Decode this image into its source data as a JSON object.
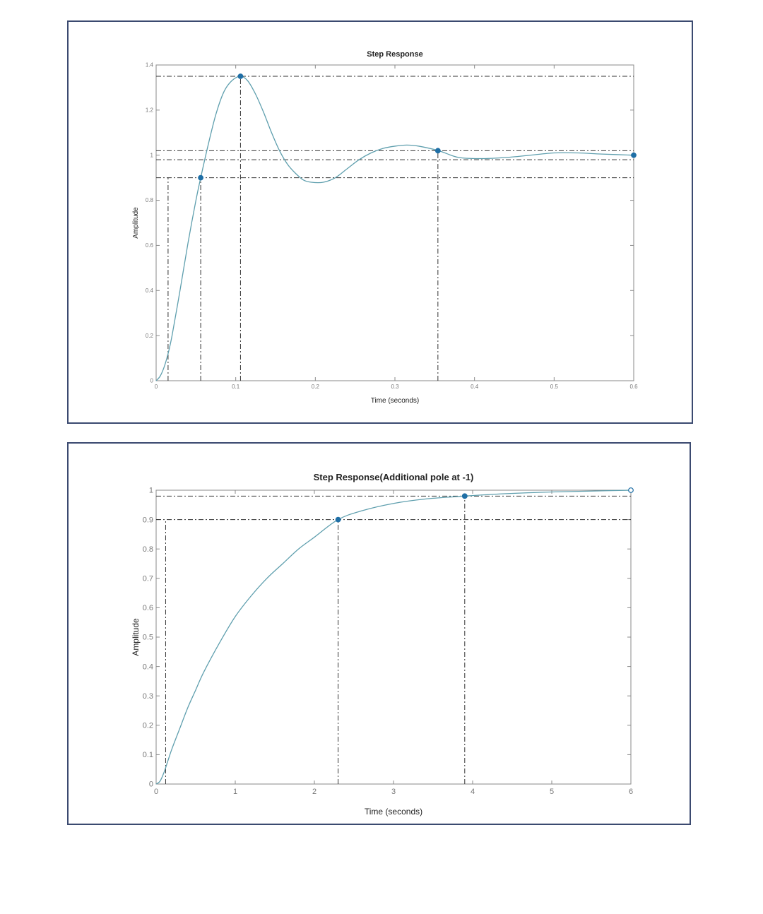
{
  "chart_data": [
    {
      "type": "line",
      "title": "Step Response",
      "xlabel": "Time (seconds)",
      "ylabel": "Amplitude",
      "xlim": [
        0,
        0.6
      ],
      "ylim": [
        0,
        1.4
      ],
      "xticks": [
        "0",
        "0.1",
        "0.2",
        "0.3",
        "0.4",
        "0.5",
        "0.6"
      ],
      "yticks": [
        "0",
        "0.2",
        "0.4",
        "0.6",
        "0.8",
        "1",
        "1.2",
        "1.4"
      ],
      "grid": false,
      "series": [
        {
          "x": [
            0,
            0.005,
            0.01,
            0.015,
            0.02,
            0.03,
            0.04,
            0.05,
            0.056,
            0.065,
            0.075,
            0.085,
            0.095,
            0.106,
            0.115,
            0.125,
            0.135,
            0.145,
            0.155,
            0.165,
            0.175,
            0.185,
            0.195,
            0.21,
            0.225,
            0.24,
            0.255,
            0.27,
            0.285,
            0.3,
            0.315,
            0.33,
            0.355,
            0.38,
            0.41,
            0.44,
            0.47,
            0.5,
            0.53,
            0.56,
            0.6
          ],
          "y": [
            0,
            0.02,
            0.06,
            0.12,
            0.2,
            0.4,
            0.61,
            0.8,
            0.9,
            1.04,
            1.18,
            1.28,
            1.33,
            1.35,
            1.33,
            1.27,
            1.19,
            1.1,
            1.02,
            0.96,
            0.92,
            0.89,
            0.88,
            0.88,
            0.9,
            0.94,
            0.98,
            1.01,
            1.03,
            1.04,
            1.045,
            1.04,
            1.02,
            0.99,
            0.985,
            0.99,
            1.0,
            1.01,
            1.01,
            1.005,
            1.0
          ]
        }
      ],
      "markers": [
        {
          "x": 0.056,
          "y": 0.9
        },
        {
          "x": 0.106,
          "y": 1.35
        },
        {
          "x": 0.354,
          "y": 1.02
        },
        {
          "x": 0.6,
          "y": 1.0
        }
      ],
      "reference_hlines": [
        1.35,
        1.02,
        0.98,
        0.9
      ],
      "reference_vlines": [
        0.015,
        0.056,
        0.106,
        0.354
      ]
    },
    {
      "type": "line",
      "title": "Step Response(Additional pole at -1)",
      "xlabel": "Time (seconds)",
      "ylabel": "Amplitude",
      "xlim": [
        0,
        6
      ],
      "ylim": [
        0,
        1
      ],
      "xticks": [
        "0",
        "1",
        "2",
        "3",
        "4",
        "5",
        "6"
      ],
      "yticks": [
        "0",
        "0.1",
        "0.2",
        "0.3",
        "0.4",
        "0.5",
        "0.6",
        "0.7",
        "0.8",
        "0.9",
        "1"
      ],
      "grid": false,
      "series": [
        {
          "x": [
            0,
            0.05,
            0.1,
            0.15,
            0.2,
            0.3,
            0.4,
            0.5,
            0.6,
            0.8,
            1.0,
            1.2,
            1.4,
            1.6,
            1.8,
            2.0,
            2.3,
            2.6,
            3.0,
            3.4,
            3.9,
            4.4,
            5.0,
            5.5,
            6.0
          ],
          "y": [
            0,
            0.01,
            0.04,
            0.08,
            0.12,
            0.19,
            0.26,
            0.32,
            0.38,
            0.48,
            0.57,
            0.64,
            0.7,
            0.75,
            0.8,
            0.84,
            0.9,
            0.93,
            0.955,
            0.97,
            0.98,
            0.988,
            0.994,
            0.997,
            1.0
          ]
        }
      ],
      "markers": [
        {
          "x": 2.3,
          "y": 0.9
        },
        {
          "x": 3.9,
          "y": 0.98
        },
        {
          "x": 6.0,
          "y": 1.0
        }
      ],
      "reference_hlines": [
        0.9,
        0.98
      ],
      "reference_vlines": [
        0.12,
        2.3,
        3.9
      ]
    }
  ]
}
